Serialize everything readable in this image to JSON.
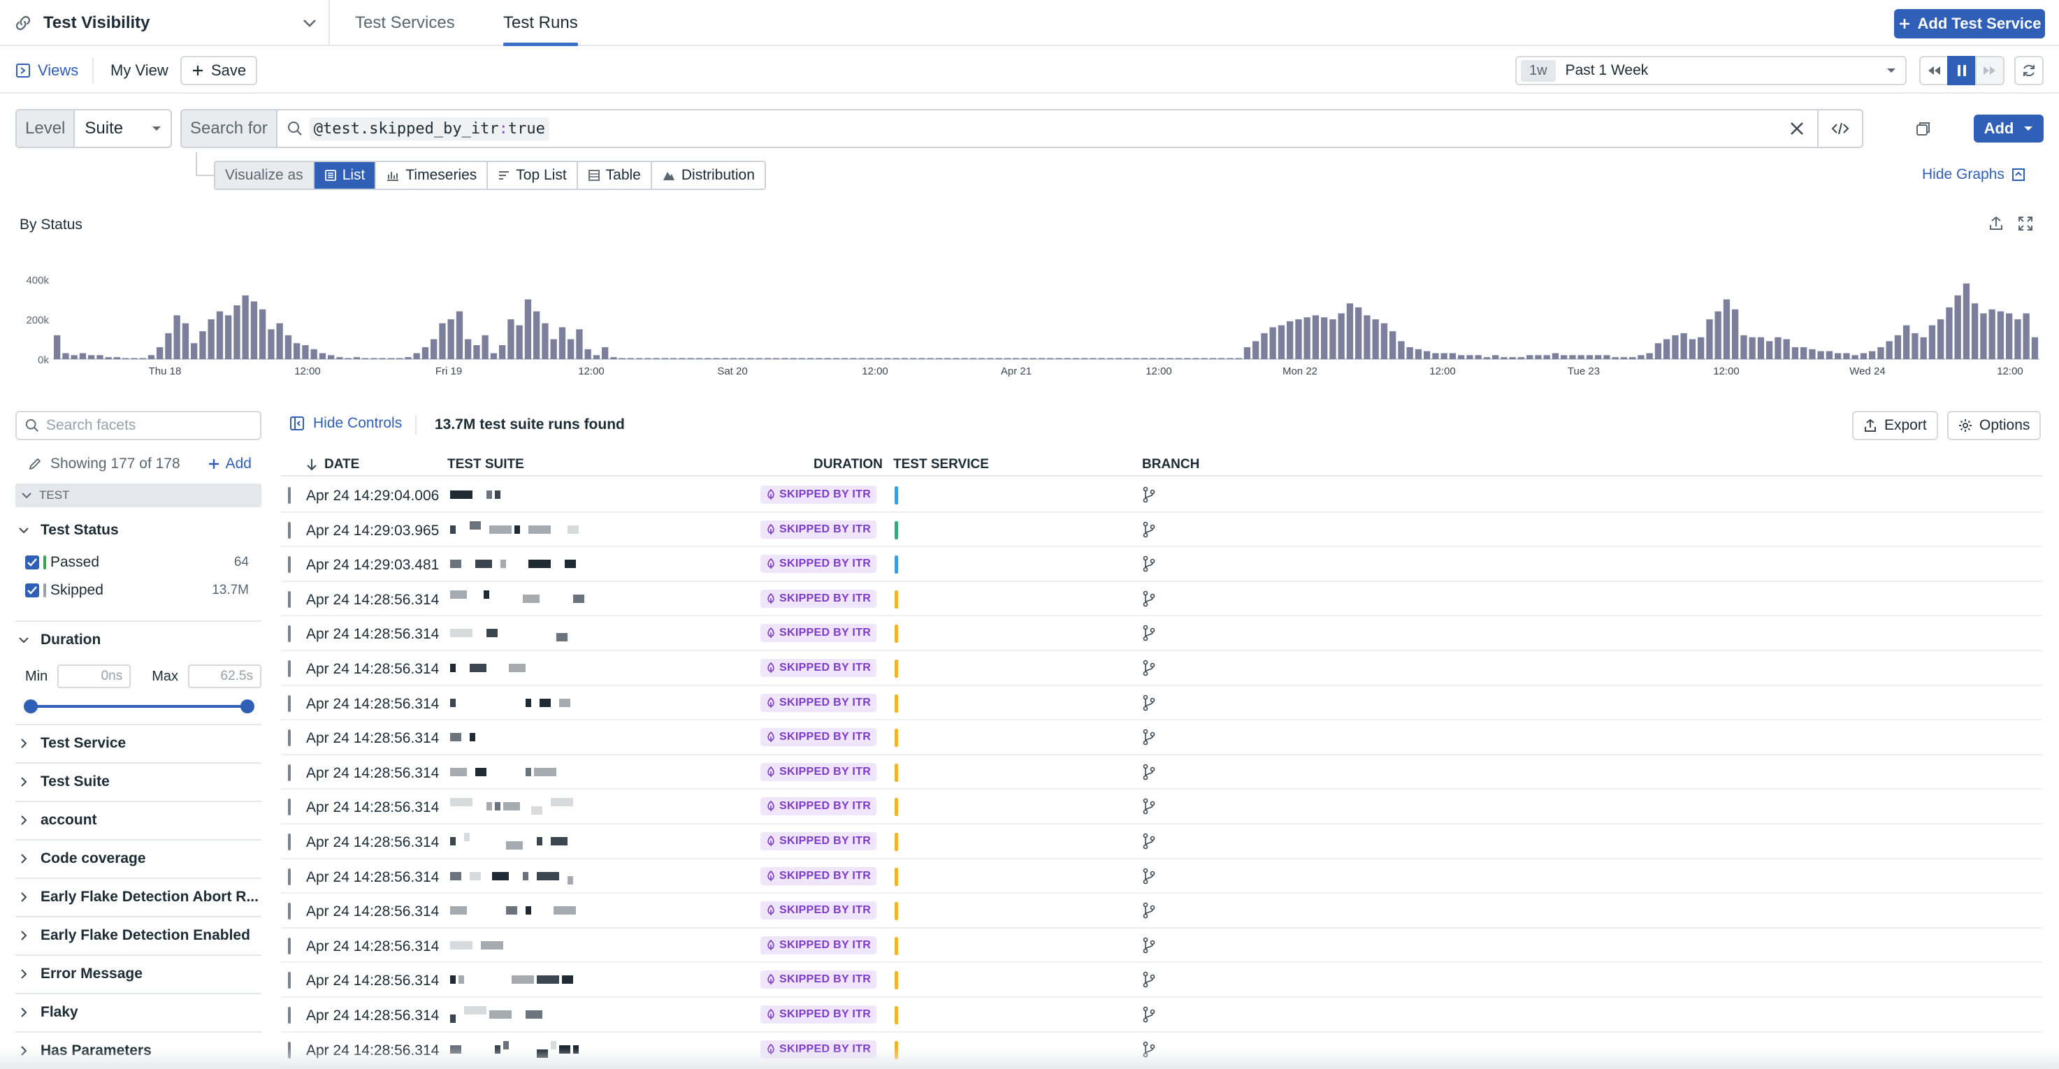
{
  "header": {
    "product": "Test Visibility",
    "tabs": [
      {
        "label": "Test Services",
        "active": false
      },
      {
        "label": "Test Runs",
        "active": true
      }
    ],
    "add_service_label": "Add Test Service"
  },
  "viewsbar": {
    "views_label": "Views",
    "my_view_label": "My View",
    "save_label": "Save",
    "time_badge": "1w",
    "time_label": "Past 1 Week"
  },
  "query": {
    "level_label": "Level",
    "level_value": "Suite",
    "search_label": "Search for",
    "query_key": "@test.skipped_by_itr",
    "query_colon": ":",
    "query_value": "true",
    "add_label": "Add"
  },
  "visualize": {
    "label": "Visualize as",
    "options": [
      {
        "label": "List",
        "icon": "list-icon",
        "active": true
      },
      {
        "label": "Timeseries",
        "icon": "timeseries-icon",
        "active": false
      },
      {
        "label": "Top List",
        "icon": "toplist-icon",
        "active": false
      },
      {
        "label": "Table",
        "icon": "table-icon",
        "active": false
      },
      {
        "label": "Distribution",
        "icon": "distribution-icon",
        "active": false
      }
    ],
    "hide_graphs_label": "Hide Graphs"
  },
  "chart_data": {
    "type": "bar",
    "title": "By Status",
    "y_ticks": [
      "400k",
      "200k",
      "0k"
    ],
    "ylim": [
      0,
      400000
    ],
    "x_ticks": [
      "Thu 18",
      "12:00",
      "Fri 19",
      "12:00",
      "Sat 20",
      "12:00",
      "Apr 21",
      "12:00",
      "Mon 22",
      "12:00",
      "Tue 23",
      "12:00",
      "Wed 24",
      "12:00"
    ],
    "color": "#7c7f9b",
    "values": [
      120000,
      30000,
      20000,
      30000,
      20000,
      20000,
      10000,
      10000,
      5000,
      5000,
      5000,
      20000,
      60000,
      130000,
      220000,
      180000,
      80000,
      140000,
      200000,
      240000,
      220000,
      270000,
      320000,
      290000,
      250000,
      150000,
      180000,
      120000,
      80000,
      70000,
      50000,
      30000,
      20000,
      10000,
      5000,
      10000,
      5000,
      5000,
      5000,
      5000,
      5000,
      10000,
      30000,
      60000,
      100000,
      180000,
      200000,
      240000,
      100000,
      70000,
      120000,
      30000,
      70000,
      200000,
      170000,
      300000,
      240000,
      180000,
      100000,
      160000,
      100000,
      150000,
      50000,
      20000,
      60000,
      10000,
      5000,
      5000,
      3000,
      3000,
      3000,
      3000,
      3000,
      3000,
      3000,
      3000,
      3000,
      3000,
      3000,
      3000,
      3000,
      3000,
      3000,
      3000,
      3000,
      3000,
      3000,
      3000,
      3000,
      3000,
      3000,
      3000,
      3000,
      3000,
      3000,
      3000,
      3000,
      3000,
      3000,
      3000,
      3000,
      3000,
      3000,
      3000,
      3000,
      3000,
      3000,
      3000,
      3000,
      3000,
      3000,
      3000,
      3000,
      3000,
      3000,
      3000,
      3000,
      3000,
      3000,
      3000,
      3000,
      3000,
      3000,
      3000,
      3000,
      3000,
      3000,
      3000,
      3000,
      3000,
      3000,
      3000,
      3000,
      3000,
      3000,
      3000,
      3000,
      3000,
      5000,
      60000,
      90000,
      130000,
      160000,
      170000,
      190000,
      200000,
      210000,
      220000,
      210000,
      200000,
      230000,
      280000,
      260000,
      220000,
      200000,
      180000,
      140000,
      90000,
      60000,
      50000,
      40000,
      30000,
      30000,
      30000,
      20000,
      20000,
      20000,
      10000,
      20000,
      10000,
      10000,
      10000,
      20000,
      20000,
      20000,
      30000,
      20000,
      20000,
      20000,
      20000,
      20000,
      20000,
      10000,
      10000,
      10000,
      20000,
      30000,
      80000,
      100000,
      120000,
      130000,
      100000,
      110000,
      200000,
      240000,
      300000,
      250000,
      120000,
      110000,
      110000,
      90000,
      110000,
      100000,
      60000,
      60000,
      50000,
      40000,
      40000,
      30000,
      30000,
      20000,
      30000,
      40000,
      60000,
      90000,
      120000,
      170000,
      130000,
      110000,
      170000,
      200000,
      260000,
      320000,
      380000,
      280000,
      230000,
      250000,
      240000,
      230000,
      200000,
      230000,
      110000
    ]
  },
  "facets": {
    "search_placeholder": "Search facets",
    "showing": "Showing 177 of 178",
    "add_label": "Add",
    "section_label": "TEST",
    "test_status": {
      "label": "Test Status",
      "items": [
        {
          "label": "Passed",
          "count": "64",
          "color": "#3aa655"
        },
        {
          "label": "Skipped",
          "count": "13.7M",
          "color": "#9aa1a9"
        }
      ]
    },
    "duration": {
      "label": "Duration",
      "min_label": "Min",
      "min_value": "0ns",
      "max_label": "Max",
      "max_value": "62.5s"
    },
    "groups": [
      "Test Service",
      "Test Suite",
      "account",
      "Code coverage",
      "Early Flake Detection Abort R...",
      "Early Flake Detection Enabled",
      "Error Message",
      "Flaky",
      "Has Parameters"
    ]
  },
  "results": {
    "hide_controls_label": "Hide Controls",
    "count_label": "13.7M test suite runs found",
    "export_label": "Export",
    "options_label": "Options",
    "columns": {
      "date": "DATE",
      "suite": "TEST SUITE",
      "duration": "DURATION",
      "service": "TEST SERVICE",
      "branch": "BRANCH"
    },
    "badge_label": "SKIPPED BY ITR",
    "rows": [
      {
        "date": "Apr 24 14:29:04.006",
        "service_color": "#3b9ee0"
      },
      {
        "date": "Apr 24 14:29:03.965",
        "service_color": "#3aa67a"
      },
      {
        "date": "Apr 24 14:29:03.481",
        "service_color": "#3b9ee0"
      },
      {
        "date": "Apr 24 14:28:56.314",
        "service_color": "#f0b429"
      },
      {
        "date": "Apr 24 14:28:56.314",
        "service_color": "#f0b429"
      },
      {
        "date": "Apr 24 14:28:56.314",
        "service_color": "#f0b429"
      },
      {
        "date": "Apr 24 14:28:56.314",
        "service_color": "#f0b429"
      },
      {
        "date": "Apr 24 14:28:56.314",
        "service_color": "#f0b429"
      },
      {
        "date": "Apr 24 14:28:56.314",
        "service_color": "#f0b429"
      },
      {
        "date": "Apr 24 14:28:56.314",
        "service_color": "#f0b429"
      },
      {
        "date": "Apr 24 14:28:56.314",
        "service_color": "#f0b429"
      },
      {
        "date": "Apr 24 14:28:56.314",
        "service_color": "#f0b429"
      },
      {
        "date": "Apr 24 14:28:56.314",
        "service_color": "#f0b429"
      },
      {
        "date": "Apr 24 14:28:56.314",
        "service_color": "#f0b429"
      },
      {
        "date": "Apr 24 14:28:56.314",
        "service_color": "#f0b429"
      },
      {
        "date": "Apr 24 14:28:56.314",
        "service_color": "#f0b429"
      },
      {
        "date": "Apr 24 14:28:56.314",
        "service_color": "#f0b429"
      }
    ]
  }
}
